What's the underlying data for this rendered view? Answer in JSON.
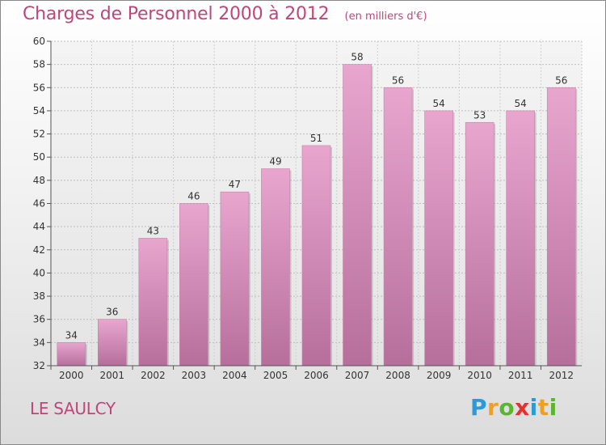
{
  "chart_data": {
    "type": "bar",
    "title": "Charges de Personnel 2000 à 2012",
    "subtitle": "(en milliers d'€)",
    "categories": [
      "2000",
      "2001",
      "2002",
      "2003",
      "2004",
      "2005",
      "2006",
      "2007",
      "2008",
      "2009",
      "2010",
      "2011",
      "2012"
    ],
    "values": [
      34,
      36,
      43,
      46,
      47,
      49,
      51,
      58,
      56,
      54,
      53,
      54,
      56
    ],
    "ylim": [
      32,
      60
    ],
    "yticks": [
      32,
      34,
      36,
      38,
      40,
      42,
      44,
      46,
      48,
      50,
      52,
      54,
      56,
      58,
      60
    ],
    "grid": true,
    "bar_color": "#d98ab6"
  },
  "commune": "LE SAULCY",
  "logo": {
    "letters": [
      "P",
      "r",
      "o",
      "x",
      "i",
      "t",
      "i"
    ],
    "colors": [
      "#2a9ad8",
      "#f0a020",
      "#5cb531",
      "#e0342c",
      "#2a9ad8",
      "#f0a020",
      "#5cb531"
    ]
  }
}
